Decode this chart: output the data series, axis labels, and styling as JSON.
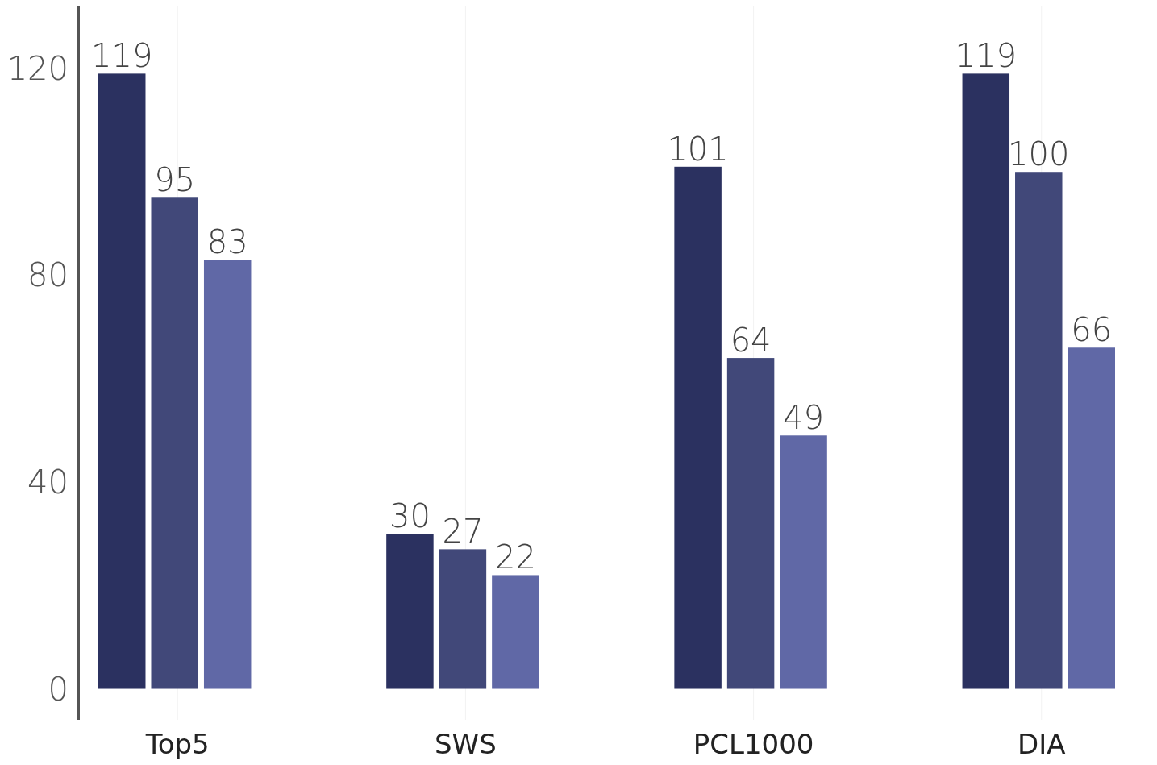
{
  "chart_data": {
    "type": "bar",
    "categories": [
      "Top5",
      "SWS",
      "PCL1000",
      "DIA"
    ],
    "series": [
      {
        "color": "#2b3160",
        "values": [
          119,
          30,
          101,
          119
        ]
      },
      {
        "color": "#414879",
        "values": [
          95,
          27,
          64,
          100
        ]
      },
      {
        "color": "#6068a6",
        "values": [
          83,
          22,
          49,
          66
        ]
      }
    ],
    "ylim": [
      -6,
      132
    ],
    "yticks": [
      0,
      40,
      80,
      120
    ],
    "data_labels": true,
    "grid": "x"
  }
}
